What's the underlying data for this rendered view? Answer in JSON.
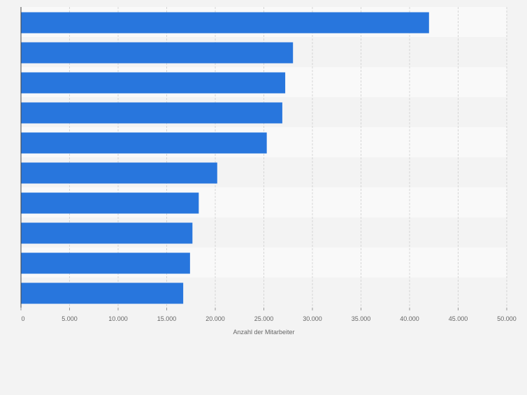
{
  "chart_data": {
    "type": "bar",
    "orientation": "horizontal",
    "title": "",
    "xlabel": "Anzahl der Mitarbeiter",
    "ylabel": "",
    "xlim": [
      0,
      50000
    ],
    "x_ticks": [
      0,
      5000,
      10000,
      15000,
      20000,
      25000,
      30000,
      35000,
      40000,
      45000,
      50000
    ],
    "x_tick_labels": [
      "0",
      "5.000",
      "10.000",
      "15.000",
      "20.000",
      "25.000",
      "30.000",
      "35.000",
      "40.000",
      "45.000",
      "50.000"
    ],
    "categories": [
      "",
      "",
      "",
      "",
      "",
      "",
      "",
      "",
      "",
      ""
    ],
    "values": [
      42000,
      28000,
      27200,
      26900,
      25300,
      20200,
      18300,
      17650,
      17400,
      16700
    ],
    "grid": true,
    "legend": "none",
    "colors": {
      "bar": "#2876dd",
      "band_light": "#f9f9f9",
      "band_dark": "#f3f3f3",
      "grid": "#d6d6d6",
      "axis": "#444444",
      "text": "#666666"
    }
  }
}
